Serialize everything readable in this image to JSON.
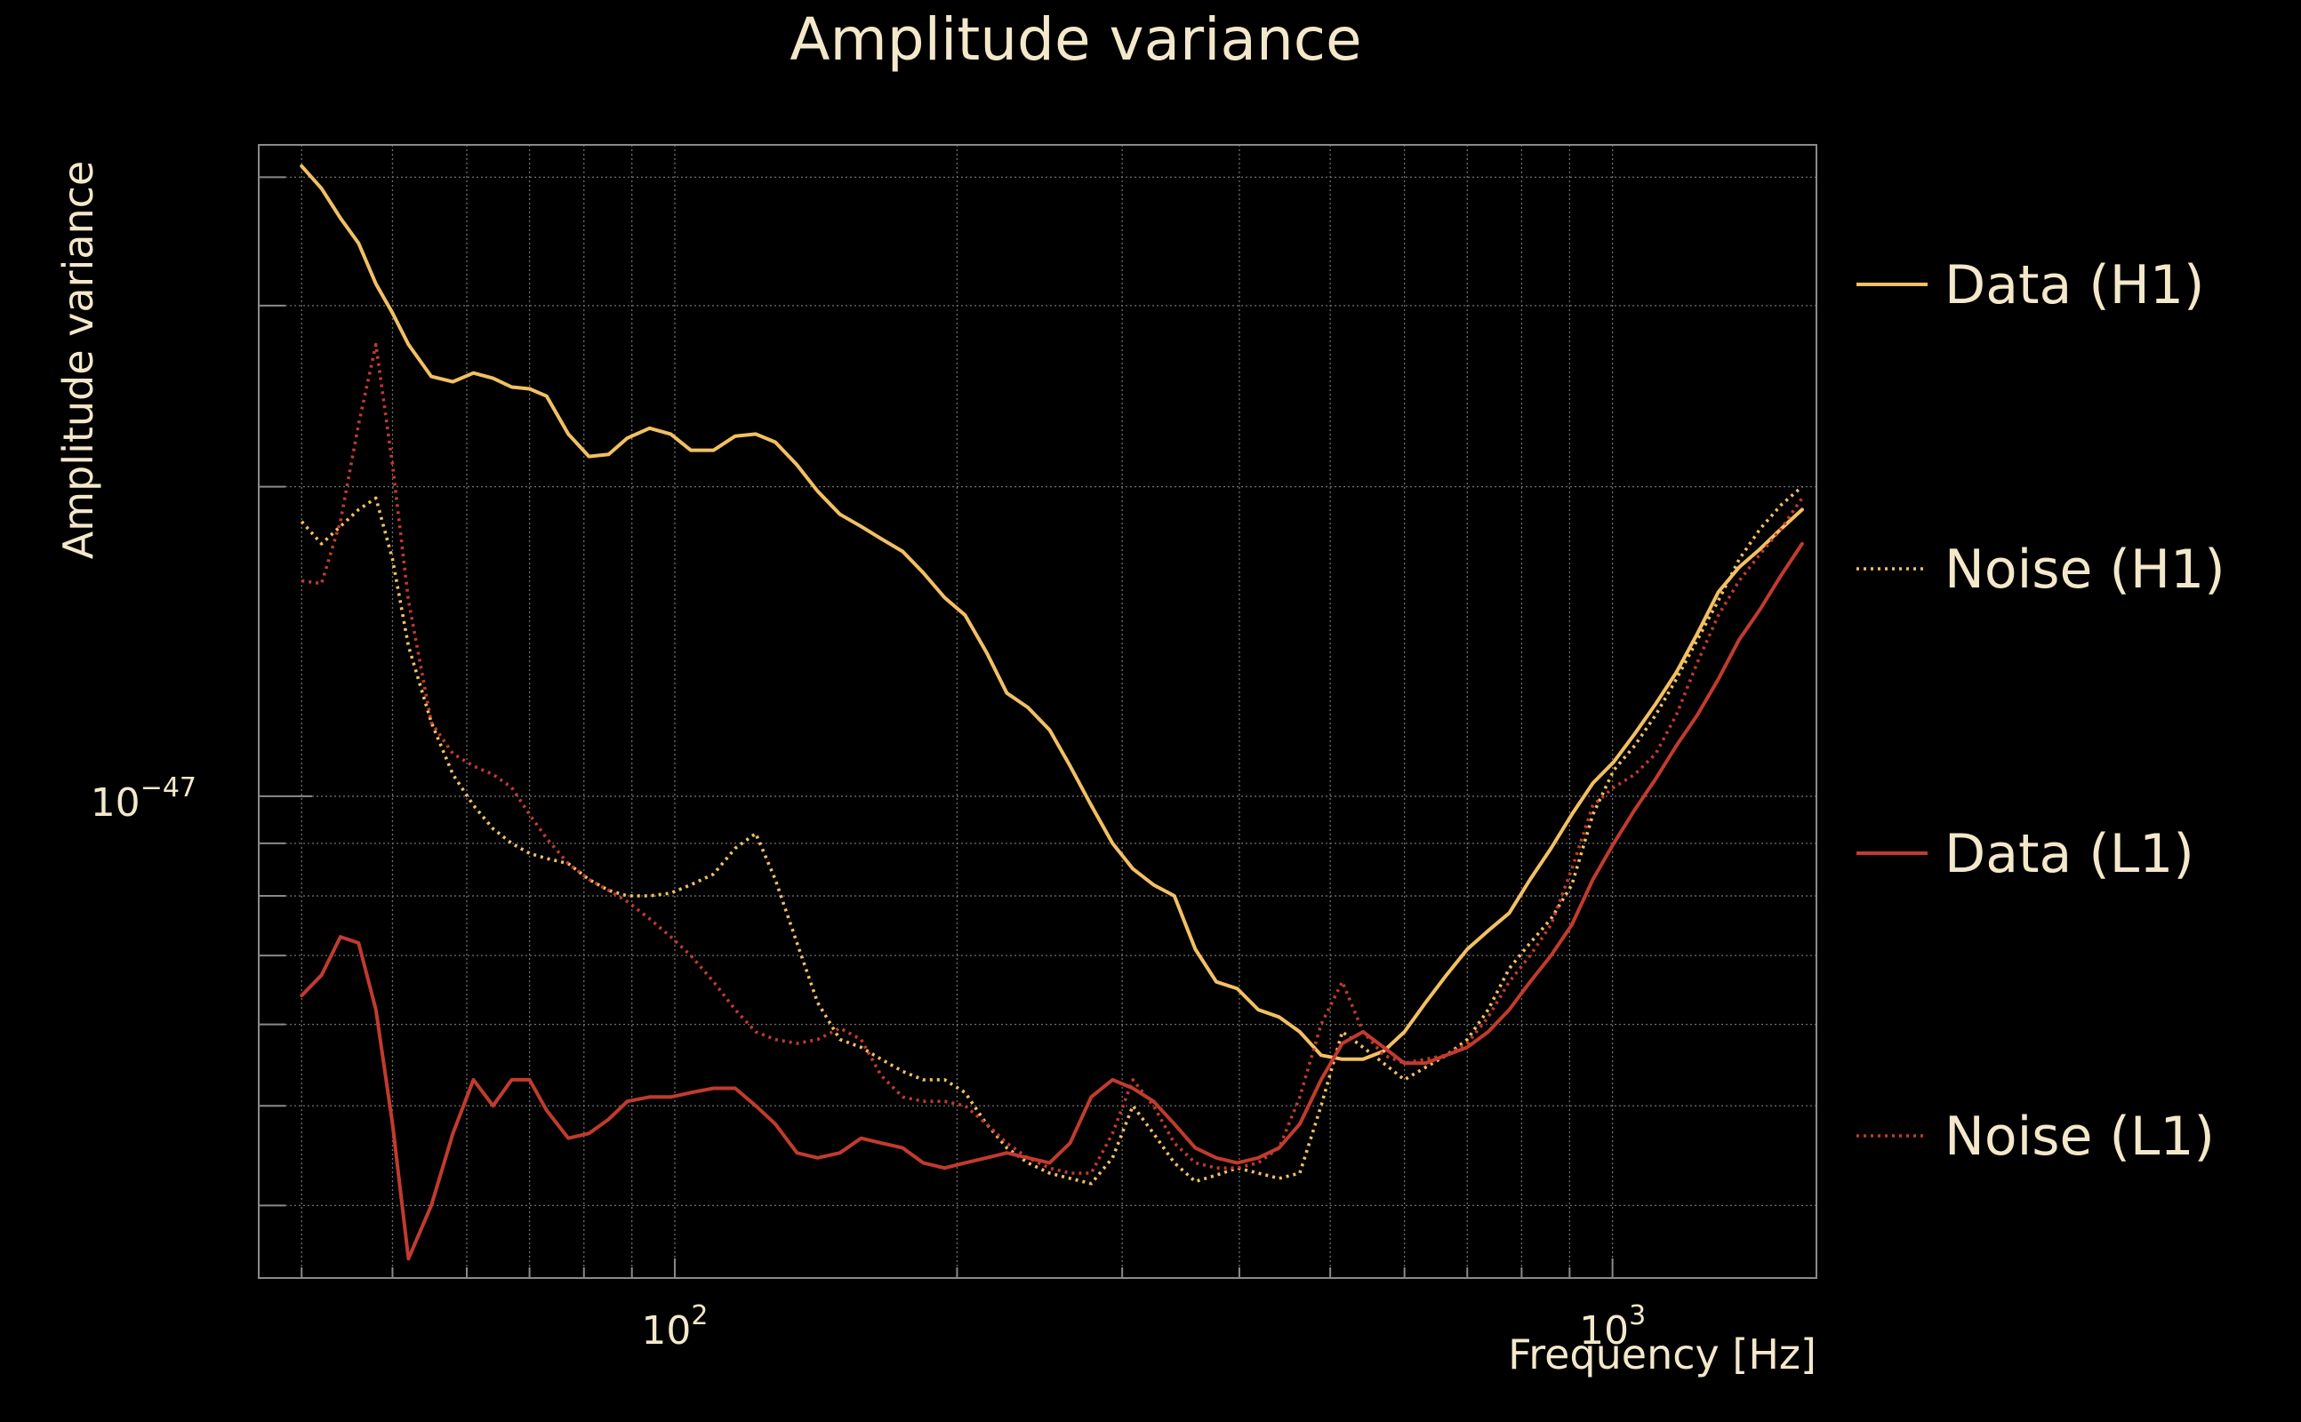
{
  "chart_data": {
    "type": "line",
    "title": "Amplitude variance",
    "xlabel": "Frequency [Hz]",
    "ylabel": "Amplitude variance",
    "x_scale": "log",
    "y_scale": "log",
    "xlim": [
      36.0,
      1650.0
    ],
    "ylim": [
      3.4e-48,
      4.3e-47
    ],
    "x_ticks": [
      {
        "base": "10",
        "exp": "2",
        "value": 100
      },
      {
        "base": "10",
        "exp": "3",
        "value": 1000
      }
    ],
    "y_ticks": [
      {
        "base": "10",
        "exp": "−47",
        "value": 1e-47
      }
    ],
    "grid": true,
    "legend_position": "right",
    "x": [
      40,
      42,
      44,
      46,
      48,
      50,
      52,
      55,
      58,
      61,
      64,
      67,
      70,
      73,
      77,
      81,
      85,
      89,
      94,
      99,
      104,
      110,
      116,
      122,
      128,
      135,
      142,
      150,
      158,
      166,
      175,
      184,
      194,
      204,
      215,
      226,
      238,
      251,
      264,
      278,
      293,
      308,
      324,
      341,
      359,
      378,
      398,
      419,
      441,
      464,
      489,
      515,
      542,
      570,
      600,
      632,
      665,
      700,
      737,
      776,
      817,
      860,
      905,
      953,
      1003,
      1056,
      1112,
      1170,
      1232,
      1297,
      1365,
      1437,
      1513,
      1593
    ],
    "series": [
      {
        "name": "Data (H1)",
        "color": "#f2c063",
        "dash": "solid",
        "values": [
          4.1e-47,
          3.9e-47,
          3.65e-47,
          3.45e-47,
          3.15e-47,
          2.95e-47,
          2.75e-47,
          2.56e-47,
          2.53e-47,
          2.58e-47,
          2.55e-47,
          2.5e-47,
          2.49e-47,
          2.45e-47,
          2.25e-47,
          2.14e-47,
          2.15e-47,
          2.23e-47,
          2.28e-47,
          2.25e-47,
          2.17e-47,
          2.17e-47,
          2.24e-47,
          2.25e-47,
          2.21e-47,
          2.1e-47,
          1.98e-47,
          1.88e-47,
          1.83e-47,
          1.78e-47,
          1.73e-47,
          1.65e-47,
          1.56e-47,
          1.5e-47,
          1.38e-47,
          1.26e-47,
          1.22e-47,
          1.16e-47,
          1.07e-47,
          9.8e-48,
          9e-48,
          8.5e-48,
          8.2e-48,
          8e-48,
          7.1e-48,
          6.6e-48,
          6.5e-48,
          6.2e-48,
          6.1e-48,
          5.9e-48,
          5.6e-48,
          5.55e-48,
          5.55e-48,
          5.65e-48,
          5.9e-48,
          6.3e-48,
          6.7e-48,
          7.1e-48,
          7.4e-48,
          7.7e-48,
          8.3e-48,
          8.9e-48,
          9.6e-48,
          1.03e-47,
          1.08e-47,
          1.15e-47,
          1.23e-47,
          1.32e-47,
          1.44e-47,
          1.58e-47,
          1.67e-47,
          1.74e-47,
          1.82e-47,
          1.9e-47
        ]
      },
      {
        "name": "Noise (H1)",
        "color": "#f2c063",
        "dash": "dotted",
        "values": [
          1.85e-47,
          1.76e-47,
          1.83e-47,
          1.9e-47,
          1.95e-47,
          1.7e-47,
          1.4e-47,
          1.18e-47,
          1.05e-47,
          9.8e-48,
          9.3e-48,
          9e-48,
          8.8e-48,
          8.7e-48,
          8.6e-48,
          8.3e-48,
          8.1e-48,
          8e-48,
          8e-48,
          8.05e-48,
          8.2e-48,
          8.4e-48,
          8.9e-48,
          9.2e-48,
          8.3e-48,
          7.2e-48,
          6.3e-48,
          5.8e-48,
          5.7e-48,
          5.55e-48,
          5.4e-48,
          5.3e-48,
          5.3e-48,
          5.15e-48,
          4.8e-48,
          4.55e-48,
          4.4e-48,
          4.3e-48,
          4.25e-48,
          4.2e-48,
          4.45e-48,
          5e-48,
          4.7e-48,
          4.4e-48,
          4.22e-48,
          4.28e-48,
          4.35e-48,
          4.3e-48,
          4.25e-48,
          4.3e-48,
          5e-48,
          5.9e-48,
          5.7e-48,
          5.5e-48,
          5.3e-48,
          5.45e-48,
          5.6e-48,
          5.8e-48,
          6.2e-48,
          6.8e-48,
          7.2e-48,
          7.6e-48,
          8.2e-48,
          9.6e-48,
          1.06e-47,
          1.12e-47,
          1.2e-47,
          1.3e-47,
          1.42e-47,
          1.55e-47,
          1.7e-47,
          1.82e-47,
          1.92e-47,
          2e-47
        ]
      },
      {
        "name": "Data (L1)",
        "color": "#c13b2e",
        "dash": "solid",
        "values": [
          6.4e-48,
          6.7e-48,
          7.3e-48,
          7.2e-48,
          6.2e-48,
          4.8e-48,
          3.55e-48,
          4e-48,
          4.7e-48,
          5.3e-48,
          5e-48,
          5.3e-48,
          5.3e-48,
          4.95e-48,
          4.65e-48,
          4.7e-48,
          4.85e-48,
          5.05e-48,
          5.1e-48,
          5.1e-48,
          5.15e-48,
          5.2e-48,
          5.2e-48,
          5e-48,
          4.8e-48,
          4.5e-48,
          4.45e-48,
          4.5e-48,
          4.65e-48,
          4.6e-48,
          4.55e-48,
          4.4e-48,
          4.35e-48,
          4.4e-48,
          4.45e-48,
          4.5e-48,
          4.45e-48,
          4.4e-48,
          4.6e-48,
          5.1e-48,
          5.3e-48,
          5.2e-48,
          5.05e-48,
          4.8e-48,
          4.55e-48,
          4.45e-48,
          4.4e-48,
          4.45e-48,
          4.55e-48,
          4.8e-48,
          5.3e-48,
          5.75e-48,
          5.9e-48,
          5.7e-48,
          5.5e-48,
          5.5e-48,
          5.6e-48,
          5.7e-48,
          5.9e-48,
          6.2e-48,
          6.6e-48,
          7e-48,
          7.5e-48,
          8.3e-48,
          9e-48,
          9.7e-48,
          1.04e-47,
          1.12e-47,
          1.2e-47,
          1.3e-47,
          1.42e-47,
          1.52e-47,
          1.64e-47,
          1.76e-47
        ]
      },
      {
        "name": "Noise (L1)",
        "color": "#c13b2e",
        "dash": "dotted",
        "values": [
          1.62e-47,
          1.61e-47,
          1.85e-47,
          2.3e-47,
          2.75e-47,
          2.1e-47,
          1.55e-47,
          1.18e-47,
          1.1e-47,
          1.07e-47,
          1.05e-47,
          1.02e-47,
          9.6e-48,
          9.1e-48,
          8.6e-48,
          8.3e-48,
          8.1e-48,
          7.9e-48,
          7.6e-48,
          7.3e-48,
          7e-48,
          6.6e-48,
          6.2e-48,
          5.9e-48,
          5.8e-48,
          5.75e-48,
          5.8e-48,
          5.95e-48,
          5.8e-48,
          5.35e-48,
          5.1e-48,
          5.05e-48,
          5.05e-48,
          5e-48,
          4.8e-48,
          4.6e-48,
          4.45e-48,
          4.35e-48,
          4.3e-48,
          4.3e-48,
          4.7e-48,
          5.3e-48,
          5e-48,
          4.6e-48,
          4.4e-48,
          4.35e-48,
          4.35e-48,
          4.4e-48,
          4.55e-48,
          5.1e-48,
          6e-48,
          6.6e-48,
          5.9e-48,
          5.6e-48,
          5.5e-48,
          5.55e-48,
          5.6e-48,
          5.75e-48,
          6.1e-48,
          6.6e-48,
          7e-48,
          7.5e-48,
          8.5e-48,
          9.8e-48,
          1.02e-47,
          1.05e-47,
          1.1e-47,
          1.2e-47,
          1.35e-47,
          1.5e-47,
          1.62e-47,
          1.72e-47,
          1.82e-47,
          1.95e-47
        ]
      }
    ]
  }
}
